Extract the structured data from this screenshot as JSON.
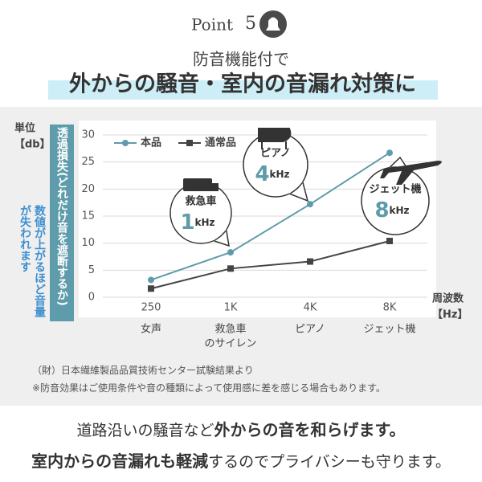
{
  "header": {
    "point": "Point",
    "number": "5",
    "subtitle": "防音機能付で",
    "title": "外からの騒音・室内の音漏れ対策に"
  },
  "side_label": "透過損失(どれだけ音を遮断するか)",
  "side_note": "数値が上がるほど音量が失われます",
  "chart_data": {
    "type": "line",
    "y_unit": [
      "単位",
      "【db】"
    ],
    "x_label": [
      "周波数",
      "【Hz】"
    ],
    "categories": [
      "250",
      "1K",
      "4K",
      "8K"
    ],
    "category_notes": [
      [
        "女声"
      ],
      [
        "救急車",
        "のサイレン"
      ],
      [
        "ピアノ"
      ],
      [
        "ジェット機"
      ]
    ],
    "series": [
      {
        "name": "本品",
        "color": "#5e9cab",
        "values": [
          3.2,
          8.3,
          17.2,
          26.7
        ]
      },
      {
        "name": "通常品",
        "color": "#444444",
        "values": [
          1.6,
          5.3,
          6.6,
          10.4
        ]
      }
    ],
    "ylim": [
      0,
      30
    ],
    "yticks": [
      0,
      5,
      10,
      15,
      20,
      25,
      30
    ],
    "grid": true,
    "annotations": [
      {
        "label": "救急車",
        "freq": "1",
        "unit": "kHz"
      },
      {
        "label": "ピアノ",
        "freq": "4",
        "unit": "kHz"
      },
      {
        "label": "ジェット機",
        "freq": "8",
        "unit": "kHz"
      }
    ]
  },
  "footnotes": [
    "（財）日本繊維製品品質技術センター試験結果より",
    "※防音効果はご使用条件や音の種類によって使用感に差を感じる場合もあります。"
  ],
  "body": [
    [
      {
        "text": "道路沿いの騒音など",
        "bold": false
      },
      {
        "text": "外からの音を和らげます。",
        "bold": true
      }
    ],
    [
      {
        "text": "室内からの音漏れも軽減",
        "bold": true
      },
      {
        "text": "するのでプライバシーも守ります。",
        "bold": false
      }
    ]
  ]
}
